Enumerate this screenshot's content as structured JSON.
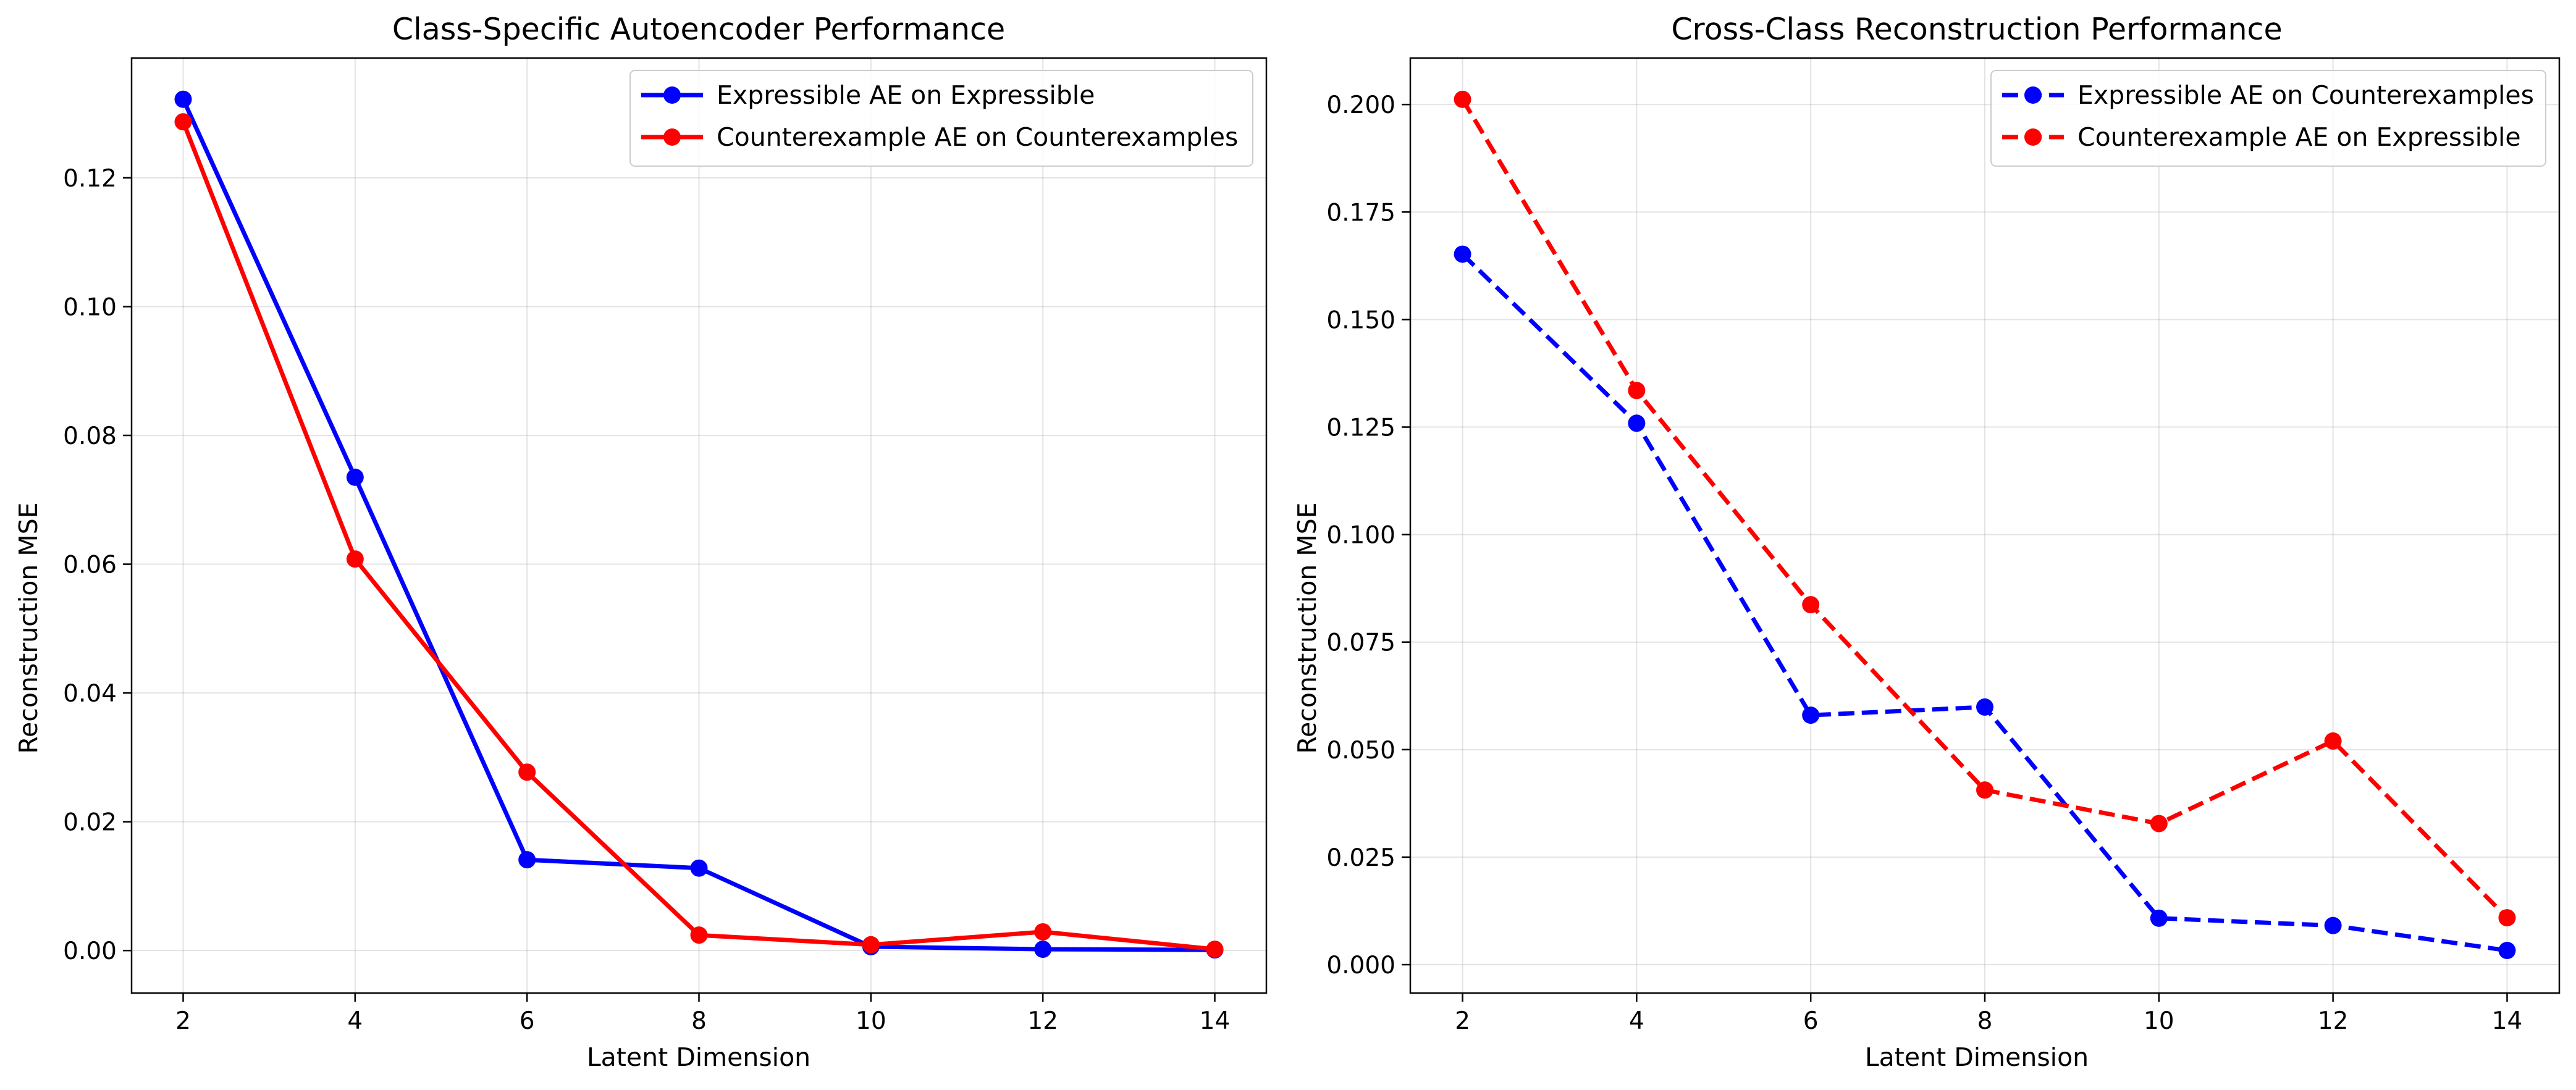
{
  "chart_data": [
    {
      "type": "line",
      "title": "Class-Specific Autoencoder Performance",
      "xlabel": "Latent Dimension",
      "ylabel": "Reconstruction MSE",
      "x": [
        2,
        4,
        6,
        8,
        10,
        12,
        14
      ],
      "xticks": [
        2,
        4,
        6,
        8,
        10,
        12,
        14
      ],
      "xtick_labels": [
        "2",
        "4",
        "6",
        "8",
        "10",
        12,
        "14"
      ],
      "xlim": [
        1.4,
        14.6
      ],
      "ylim": [
        -0.0066,
        0.1386
      ],
      "yticks": [
        0,
        0.02,
        0.04,
        0.06,
        0.08,
        0.1,
        0.12
      ],
      "ytick_labels": [
        "0.00",
        "0.02",
        "0.04",
        "0.06",
        "0.08",
        "0.10",
        "0.12"
      ],
      "grid": true,
      "legend_position": "top-right",
      "series": [
        {
          "name": "Expressible AE on Expressible",
          "color": "#0000ff",
          "dashed": false,
          "values": [
            0.1322,
            0.0735,
            0.0141,
            0.0128,
            0.0006,
            0.0002,
            0.0001
          ]
        },
        {
          "name": "Counterexample AE on Counterexamples",
          "color": "#ff0000",
          "dashed": false,
          "values": [
            0.1287,
            0.0608,
            0.0277,
            0.0024,
            0.0009,
            0.0029,
            0.0002
          ]
        }
      ]
    },
    {
      "type": "line",
      "title": "Cross-Class Reconstruction Performance",
      "xlabel": "Latent Dimension",
      "ylabel": "Reconstruction MSE",
      "x": [
        2,
        4,
        6,
        8,
        10,
        12,
        14
      ],
      "xticks": [
        2,
        4,
        6,
        8,
        10,
        12,
        14
      ],
      "xtick_labels": [
        "2",
        "4",
        "6",
        "8",
        "10",
        "12",
        "14"
      ],
      "xlim": [
        1.4,
        14.6
      ],
      "ylim": [
        -0.0066,
        0.2108
      ],
      "yticks": [
        0,
        0.025,
        0.05,
        0.075,
        0.1,
        0.125,
        0.15,
        0.175,
        0.2
      ],
      "ytick_labels": [
        "0.000",
        "0.025",
        "0.050",
        "0.075",
        "0.100",
        "0.125",
        "0.150",
        "0.175",
        "0.200"
      ],
      "grid": true,
      "legend_position": "top-right",
      "series": [
        {
          "name": "Expressible AE on Counterexamples",
          "color": "#0000ff",
          "dashed": true,
          "values": [
            0.1652,
            0.1259,
            0.058,
            0.0599,
            0.0108,
            0.0091,
            0.0033
          ]
        },
        {
          "name": "Counterexample AE on Expressible",
          "color": "#ff0000",
          "dashed": true,
          "values": [
            0.2012,
            0.1335,
            0.0837,
            0.0406,
            0.0328,
            0.052,
            0.0109
          ]
        }
      ]
    }
  ]
}
